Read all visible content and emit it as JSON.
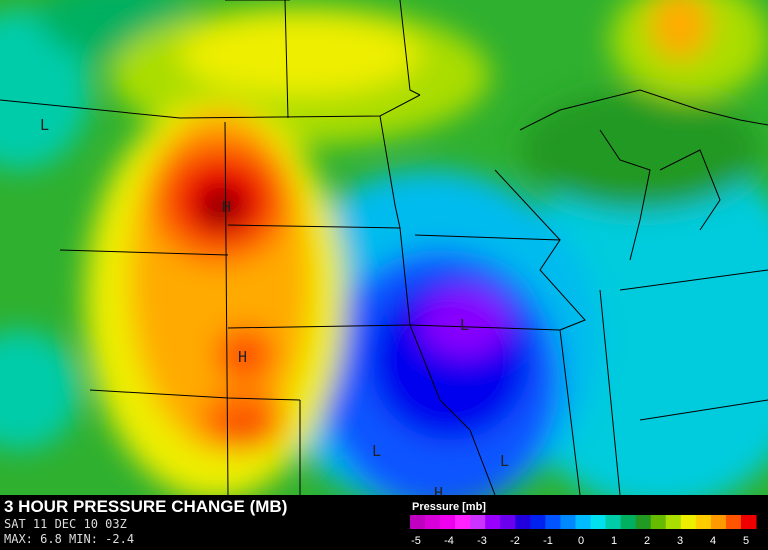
{
  "header": {
    "title": "3 HOUR PRESSURE CHANGE (MB)",
    "valid_time": "SAT 11 DEC 10 03Z",
    "stats": "MAX: 6.8 MIN: -2.4"
  },
  "legend": {
    "title": "Pressure [mb]",
    "colors": [
      "#c000c0",
      "#d800d8",
      "#ee00ee",
      "#ff22ff",
      "#cc33ff",
      "#9900ff",
      "#6a00ee",
      "#2200dd",
      "#0022ee",
      "#0055ff",
      "#0088ff",
      "#00bbff",
      "#00e0ee",
      "#00ccaa",
      "#00b060",
      "#229922",
      "#66bb00",
      "#aadd00",
      "#eeee00",
      "#ffcc00",
      "#ff9900",
      "#ff5500",
      "#ee0000"
    ],
    "ticks": [
      -5,
      -4,
      -3,
      -2,
      -1,
      0,
      1,
      2,
      3,
      4,
      5
    ]
  },
  "map_labels": [
    "L",
    "H",
    "H",
    "L",
    "L",
    "L",
    "H"
  ]
}
